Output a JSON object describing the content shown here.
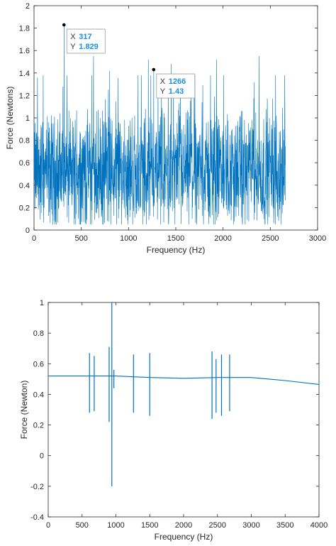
{
  "colors": {
    "series": "#0072BD",
    "axis": "#262626",
    "datatip_value": "#1a8fe6"
  },
  "chart_data": [
    {
      "type": "line",
      "xlabel": "Frequency (Hz)",
      "ylabel": "Force (Newtons)",
      "xlim": [
        0,
        3000
      ],
      "ylim": [
        0,
        2
      ],
      "xticks": [
        0,
        500,
        1000,
        1500,
        2000,
        2500,
        3000
      ],
      "yticks": [
        0,
        0.2,
        0.4,
        0.6,
        0.8,
        1,
        1.2,
        1.4,
        1.6,
        1.8,
        2
      ],
      "x_range": [
        0,
        2660
      ],
      "series": [
        {
          "color": "#0072BD",
          "description_mean": 0.52,
          "spread": [
            0.05,
            1.83
          ]
        }
      ],
      "peaks": [
        {
          "x": 317,
          "y": 1.829
        },
        {
          "x": 1266,
          "y": 1.43
        },
        {
          "x": 630,
          "y": 1.55
        },
        {
          "x": 1210,
          "y": 1.52
        },
        {
          "x": 1930,
          "y": 1.52
        },
        {
          "x": 2380,
          "y": 1.55
        },
        {
          "x": 1450,
          "y": 1.48
        },
        {
          "x": 800,
          "y": 1.42
        }
      ],
      "datatips": [
        {
          "x_label": "X",
          "x_value": "317",
          "y_label": "Y",
          "y_value": "1.829",
          "x": 317,
          "y": 1.829
        },
        {
          "x_label": "X",
          "x_value": "1266",
          "y_label": "Y",
          "y_value": "1.43",
          "x": 1266,
          "y": 1.43
        }
      ],
      "grid": false
    },
    {
      "type": "line",
      "xlabel": "Frequency (Hz)",
      "ylabel": "Force (Newton)",
      "xlim": [
        0,
        4000
      ],
      "ylim": [
        -0.4,
        1
      ],
      "xticks": [
        0,
        500,
        1000,
        1500,
        2000,
        2500,
        3000,
        3500,
        4000
      ],
      "yticks": [
        -0.4,
        -0.2,
        0,
        0.2,
        0.4,
        0.6,
        0.8,
        1
      ],
      "baseline": [
        [
          0,
          0.52
        ],
        [
          500,
          0.52
        ],
        [
          1000,
          0.52
        ],
        [
          1500,
          0.51
        ],
        [
          2000,
          0.505
        ],
        [
          2500,
          0.51
        ],
        [
          3000,
          0.51
        ],
        [
          3500,
          0.49
        ],
        [
          4000,
          0.465
        ]
      ],
      "spikes": [
        {
          "x": 610,
          "min": 0.28,
          "max": 0.67
        },
        {
          "x": 680,
          "min": 0.29,
          "max": 0.65
        },
        {
          "x": 900,
          "min": 0.22,
          "max": 0.71
        },
        {
          "x": 940,
          "min": -0.2,
          "max": 1.0
        },
        {
          "x": 970,
          "min": 0.44,
          "max": 0.56
        },
        {
          "x": 1260,
          "min": 0.28,
          "max": 0.66
        },
        {
          "x": 1500,
          "min": 0.26,
          "max": 0.67
        },
        {
          "x": 2420,
          "min": 0.24,
          "max": 0.68
        },
        {
          "x": 2480,
          "min": 0.28,
          "max": 0.63
        },
        {
          "x": 2560,
          "min": 0.26,
          "max": 0.66
        },
        {
          "x": 2680,
          "min": 0.29,
          "max": 0.66
        }
      ],
      "grid": false
    }
  ]
}
